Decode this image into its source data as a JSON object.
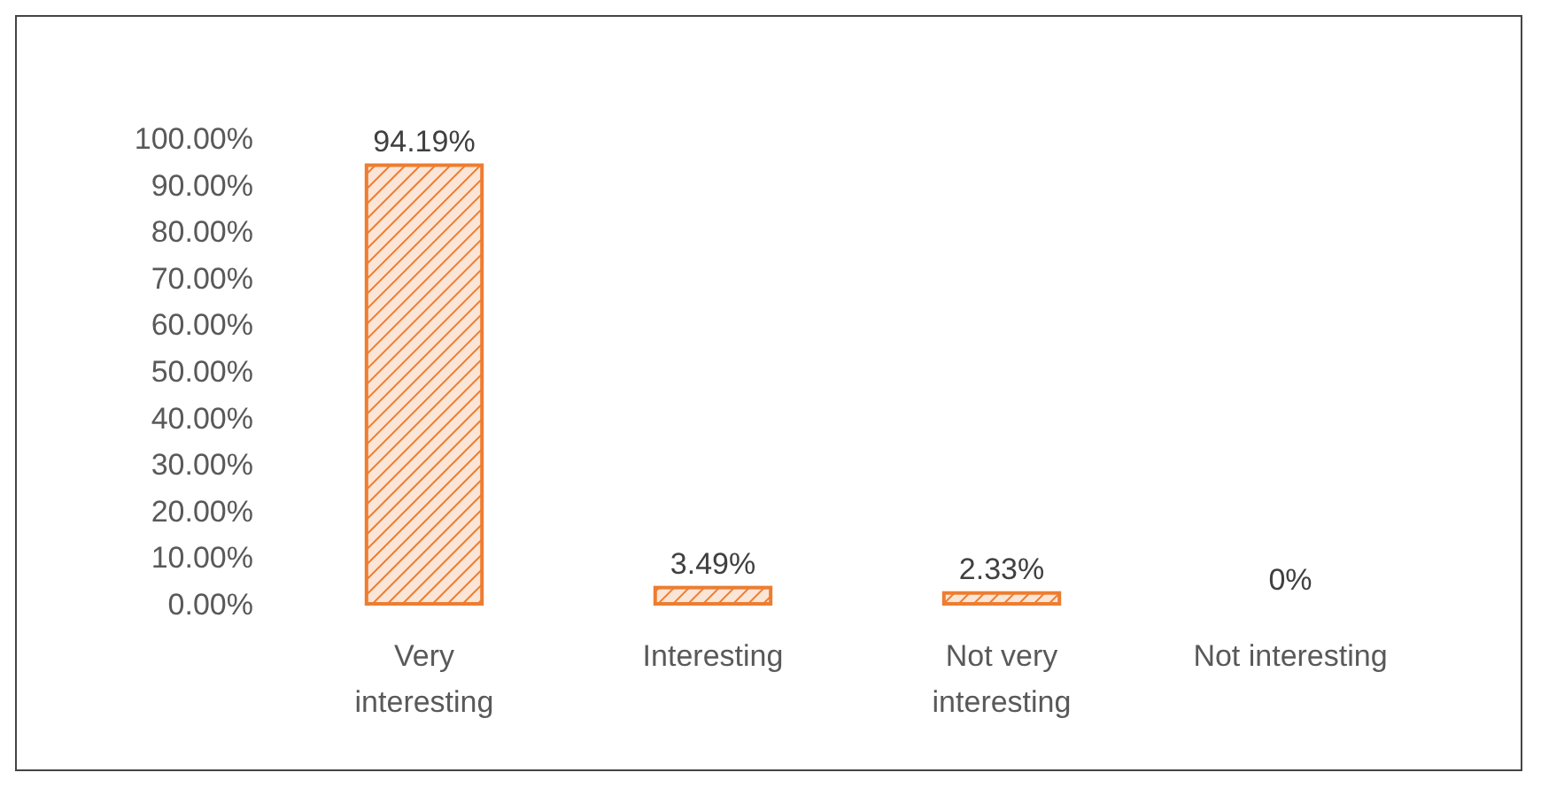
{
  "chart_data": {
    "type": "bar",
    "categories": [
      "Very interesting",
      "Interesting",
      "Not very interesting",
      "Not interesting"
    ],
    "values": [
      94.19,
      3.49,
      2.33,
      0
    ],
    "value_labels": [
      "94.19%",
      "3.49%",
      "2.33%",
      "0%"
    ],
    "color": "#ed7d31",
    "ylim": [
      0,
      100
    ],
    "yticks": [
      {
        "value": 0,
        "label": "0.00%"
      },
      {
        "value": 10,
        "label": "10.00%"
      },
      {
        "value": 20,
        "label": "20.00%"
      },
      {
        "value": 30,
        "label": "30.00%"
      },
      {
        "value": 40,
        "label": "40.00%"
      },
      {
        "value": 50,
        "label": "50.00%"
      },
      {
        "value": 60,
        "label": "60.00%"
      },
      {
        "value": 70,
        "label": "70.00%"
      },
      {
        "value": 80,
        "label": "80.00%"
      },
      {
        "value": 90,
        "label": "90.00%"
      },
      {
        "value": 100,
        "label": "100.00%"
      }
    ],
    "grid": false
  }
}
